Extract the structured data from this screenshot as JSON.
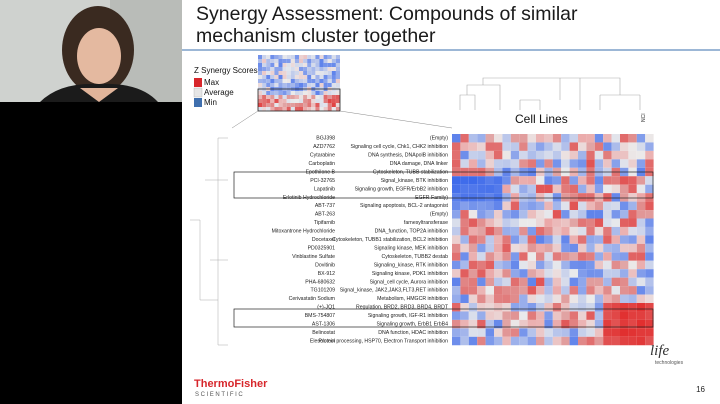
{
  "slide": {
    "title_line1": "Synergy Assessment: Compounds of similar",
    "title_line2": "mechanism cluster together",
    "legend": {
      "title": "Z Synergy Scores",
      "items": [
        "Max",
        "Average",
        "Min"
      ]
    },
    "heatmap_label": "Cell Lines",
    "column_tag": "NCI",
    "rows": [
      [
        "BGJ398",
        "(Empty)"
      ],
      [
        "AZD7762",
        "Signaling cell cycle, Chk1, CHK2 inhibition"
      ],
      [
        "Cytarabine",
        "DNA synthesis, DNApolB inhibition"
      ],
      [
        "Carboplatin",
        "DNA damage, DNA linker"
      ],
      [
        "Epothilone B",
        "Cytoskeleton, TUBB stabilization"
      ],
      [
        "PCI-32765",
        "Signal_kinase, BTK inhibition"
      ],
      [
        "Lapatinib",
        "Signaling growth, EGFR/ErbB2 inhibition"
      ],
      [
        "Erlotinib Hydrochloride",
        "EGFR Family)"
      ],
      [
        "ABT-737",
        "Signaling apoptosis, BCL-2 antagonist"
      ],
      [
        "ABT-263",
        "(Empty)"
      ],
      [
        "Tipifarnib",
        "farnesyltransferase"
      ],
      [
        "Mitoxantrone Hydrochloride",
        "DNA_function, TOP2A inhibition"
      ],
      [
        "Docetaxel",
        "Cytoskeleton, TUBB1 stabilization, BCL2 inhibition"
      ],
      [
        "PD0325901",
        "Signaling kinase, MEK inhibition"
      ],
      [
        "Vinblastine Sulfate",
        "Cytoskeleton, TUBB2 destab"
      ],
      [
        "Dovitinib",
        "Signaling_kinase, RTK inhibition"
      ],
      [
        "BX-912",
        "Signaling kinase, PDK1 inhibition"
      ],
      [
        "PHA-680632",
        "Signal_cell cycle, Aurora inhibition"
      ],
      [
        "TG101209",
        "Signal_kinase, JAK2,JAK3,FLT3,RET inhibition"
      ],
      [
        "Cerivastatin Sodium",
        "Metabolism, HMGCR inhibition"
      ],
      [
        "(+)-JQ1",
        "Regulation, BRD2, BRD3, BRD4, BRDT"
      ],
      [
        "BMS-754807",
        "Signaling growth, IGF-R1 inhibition"
      ],
      [
        "AST-1306",
        "Signaling growth, ErbB1 ErbB4"
      ],
      [
        "Belinostat",
        "DNA function, HDAC inhibition"
      ],
      [
        "Elesclomol",
        "Protein processing, HSP70, Electron Transport inhibition"
      ]
    ],
    "footer": {
      "brand1": "ThermoFisher",
      "brand2": "SCIENTIFIC",
      "logo1": "life",
      "logo2": "technologies",
      "page": "16"
    }
  }
}
